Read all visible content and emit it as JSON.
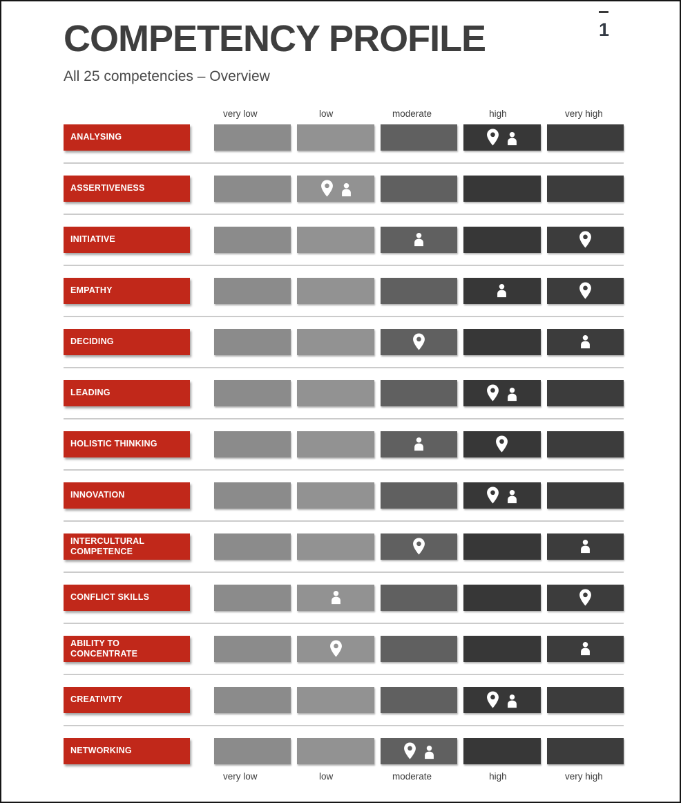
{
  "header": {
    "title": "COMPETENCY PROFILE",
    "subtitle": "All 25 competencies – Overview",
    "page_number": "1"
  },
  "columns": [
    "very low",
    "low",
    "moderate",
    "high",
    "very high"
  ],
  "colors": {
    "label_red": "#c1281a",
    "cell_shades": [
      "#8b8b8b",
      "#929292",
      "#606060",
      "#373737",
      "#3c3c3c"
    ],
    "icon_white": "#ffffff",
    "divider": "#cbcbcb",
    "title_text": "#3e3e3e",
    "frame": "#161616"
  },
  "rows": [
    {
      "label": "ANALYSING",
      "pin": "high",
      "person": "high"
    },
    {
      "label": "ASSERTIVENESS",
      "pin": "low",
      "person": "low"
    },
    {
      "label": "INITIATIVE",
      "pin": "very high",
      "person": "moderate"
    },
    {
      "label": "EMPATHY",
      "pin": "very high",
      "person": "high"
    },
    {
      "label": "DECIDING",
      "pin": "moderate",
      "person": "very high"
    },
    {
      "label": "LEADING",
      "pin": "high",
      "person": "high"
    },
    {
      "label": "HOLISTIC THINKING",
      "pin": "high",
      "person": "moderate"
    },
    {
      "label": "INNOVATION",
      "pin": "high",
      "person": "high"
    },
    {
      "label": "INTERCULTURAL COMPETENCE",
      "pin": "moderate",
      "person": "very high"
    },
    {
      "label": "CONFLICT SKILLS",
      "pin": "very high",
      "person": "low"
    },
    {
      "label": "ABILITY TO CONCENTRATE",
      "pin": "low",
      "person": "very high"
    },
    {
      "label": "CREATIVITY",
      "pin": "high",
      "person": "high"
    },
    {
      "label": "NETWORKING",
      "pin": "moderate",
      "person": "moderate"
    }
  ],
  "chart_data": {
    "type": "table",
    "title": "COMPETENCY PROFILE",
    "subtitle": "All 25 competencies – Overview",
    "scale": [
      "very low",
      "low",
      "moderate",
      "high",
      "very high"
    ],
    "categories": [
      "ANALYSING",
      "ASSERTIVENESS",
      "INITIATIVE",
      "EMPATHY",
      "DECIDING",
      "LEADING",
      "HOLISTIC THINKING",
      "INNOVATION",
      "INTERCULTURAL COMPETENCE",
      "CONFLICT SKILLS",
      "ABILITY TO CONCENTRATE",
      "CREATIVITY",
      "NETWORKING"
    ],
    "series": [
      {
        "name": "pin-marker",
        "values": [
          "high",
          "low",
          "very high",
          "very high",
          "moderate",
          "high",
          "high",
          "high",
          "moderate",
          "very high",
          "low",
          "high",
          "moderate"
        ]
      },
      {
        "name": "person-marker",
        "values": [
          "high",
          "low",
          "moderate",
          "high",
          "very high",
          "high",
          "moderate",
          "high",
          "very high",
          "low",
          "very high",
          "high",
          "moderate"
        ]
      }
    ],
    "layout": {
      "scale_labels_shown": "top and bottom",
      "row_labels_style": "red boxes, white uppercase text",
      "cell_shading": "light gray (very low) to dark gray (very high)"
    }
  }
}
